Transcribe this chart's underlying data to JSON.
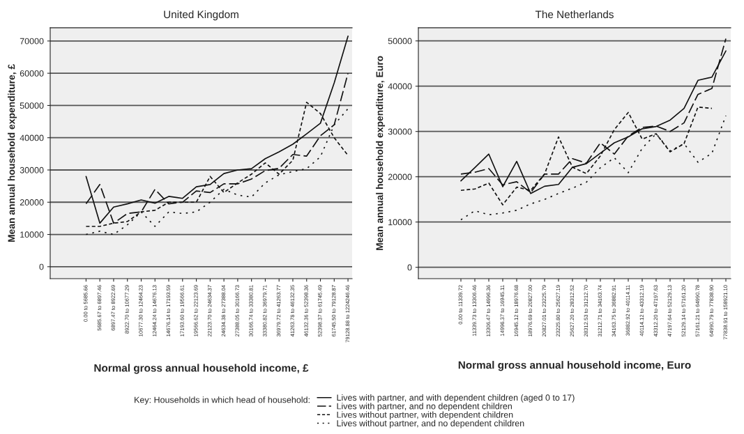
{
  "chart_data": [
    {
      "type": "line",
      "title": "United Kingdom",
      "xlabel": "Normal gross annual household income, £",
      "ylabel": "Mean annual household expenditure, £",
      "categories": [
        "0.00 to 5685.66",
        "5685.67 to 6897.46",
        "6897.47 to 8922.69",
        "8922.70 to 10677.29",
        "10677.30 to 12464.23",
        "12464.24 to 14676.13",
        "14676.14 to 17193.59",
        "17193.60 to 19566.61",
        "19566.62 to 22123.69",
        "22123.70 to 24634.37",
        "24634.38 to 27388.04",
        "27388.05 to 30166.73",
        "30166.74 to 33380.81",
        "33380.82 to 36979.71",
        "36979.72 to 41263.77",
        "41263.78 to 46132.35",
        "46132.36 to 52398.36",
        "52398.37 to 61745.49",
        "61745.50 to 79128.87",
        "79128.88 to 1224246.46"
      ],
      "series": [
        {
          "name": "Lives with partner, and with dependent children (aged 0 to 17)",
          "color": "#111111",
          "line_style": "solid",
          "values": [
            28000,
            13500,
            18500,
            19500,
            20700,
            19700,
            21800,
            21200,
            24800,
            25500,
            28900,
            30000,
            30400,
            33500,
            35600,
            38000,
            41200,
            44500,
            57000,
            71500
          ]
        },
        {
          "name": "Lives with partner, and no dependent children",
          "color": "#111111",
          "line_style": "dashed",
          "values": [
            19500,
            25500,
            13500,
            16500,
            17000,
            24000,
            19500,
            20000,
            23500,
            23000,
            25700,
            25700,
            27200,
            29800,
            30500,
            34800,
            34300,
            40600,
            44000,
            60000
          ]
        },
        {
          "name": "Lives without partner, with dependent children",
          "color": "#111111",
          "line_style": "dotted",
          "values": [
            12500,
            12500,
            13500,
            14000,
            17000,
            17500,
            20000,
            20000,
            20000,
            28000,
            23000,
            26000,
            28700,
            32200,
            28700,
            33000,
            51000,
            47500,
            40000,
            34500
          ]
        },
        {
          "name": "Lives without partner, and no dependent children",
          "color": "#111111",
          "line_style": "dotted",
          "values": [
            10000,
            11000,
            10000,
            13000,
            17000,
            12500,
            17000,
            16500,
            17000,
            20000,
            24000,
            22200,
            21600,
            26000,
            28500,
            29500,
            30400,
            34100,
            44000,
            49000
          ]
        }
      ],
      "ylim": [
        -3700,
        74100
      ],
      "yticks": [
        0,
        10000,
        20000,
        30000,
        40000,
        50000,
        60000,
        70000
      ],
      "grid": "y",
      "legend": "bottom",
      "legend_title": "Key: Households in which head of household:"
    },
    {
      "type": "line",
      "title": "The Netherlands",
      "xlabel": "Normal gross annual household income, Euro",
      "ylabel": "Mean annual household expenditure, Euro",
      "categories": [
        "0.00 to 11339.72",
        "11339.73 to 13306.46",
        "13306.47 to 14996.36",
        "14996.37 to 16945.11",
        "16945.12 to 18976.68",
        "18976.69 to 20827.00",
        "20827.01 to 23225.79",
        "23225.80 to 25627.19",
        "25627.20 to 28312.52",
        "28312.53 to 31212.70",
        "31212.71 to 34163.74",
        "34163.75 to 36882.91",
        "36882.92 to 40114.11",
        "40114.12 to 43312.19",
        "43312.20 to 47197.63",
        "47197.64 to 52129.13",
        "52129.14 to 57161.20",
        "57161.21 to 64990.78",
        "64990.79 to 77838.90",
        "77838.91 to 158921.10"
      ],
      "series": [
        {
          "color": "#111111",
          "line_style": "solid",
          "values": [
            19100,
            22000,
            25000,
            17800,
            23400,
            16300,
            17900,
            18300,
            22100,
            22900,
            25200,
            27500,
            28800,
            30600,
            31100,
            32500,
            35100,
            41300,
            42000,
            47800
          ]
        },
        {
          "color": "#111111",
          "line_style": "dashed",
          "values": [
            20600,
            21000,
            21800,
            18200,
            18900,
            16500,
            20600,
            20600,
            24000,
            23000,
            27500,
            25000,
            29000,
            30900,
            31200,
            30000,
            31900,
            38200,
            39500,
            50500
          ]
        },
        {
          "color": "#111111",
          "line_style": "dotted",
          "values": [
            17000,
            17300,
            18600,
            13800,
            17700,
            17000,
            20600,
            28800,
            22100,
            20700,
            24600,
            30400,
            34200,
            28300,
            29500,
            25500,
            27300,
            35400,
            35100,
            null
          ]
        },
        {
          "color": "#111111",
          "line_style": "dotted",
          "values": [
            10500,
            12500,
            11600,
            12000,
            12600,
            14000,
            15000,
            16300,
            17500,
            18800,
            22000,
            24200,
            20900,
            26300,
            29500,
            25700,
            27300,
            23200,
            25200,
            33500
          ]
        }
      ],
      "ylim": [
        -2500,
        52900
      ],
      "yticks": [
        0,
        10000,
        20000,
        30000,
        40000,
        50000
      ],
      "grid": "y"
    }
  ]
}
